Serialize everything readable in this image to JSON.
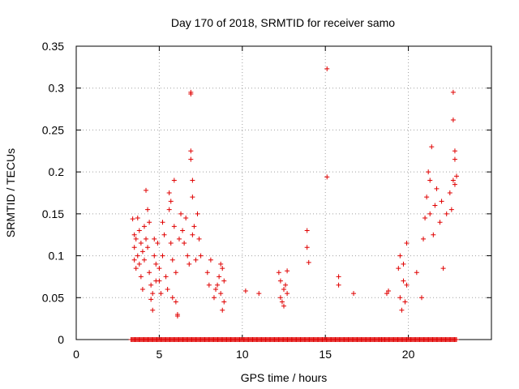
{
  "chart_data": {
    "type": "scatter",
    "title": "Day 170 of 2018, SRMTID for receiver samo",
    "xlabel": "GPS time / hours",
    "ylabel": "SRMTID / TECUs",
    "xlim": [
      0,
      25
    ],
    "ylim": [
      0,
      0.35
    ],
    "xticks": [
      0,
      5,
      10,
      15,
      20
    ],
    "yticks": [
      0,
      0.05,
      0.1,
      0.15,
      0.2,
      0.25,
      0.3,
      0.35
    ],
    "xtick_labels": [
      "0",
      "5",
      "10",
      "15",
      "20"
    ],
    "ytick_labels": [
      "0",
      "0.05",
      "0.1",
      "0.15",
      "0.2",
      "0.25",
      "0.3",
      "0.35"
    ],
    "grid": true,
    "marker": "+",
    "color": "#e00000",
    "series": [
      {
        "name": "SRMTID",
        "points": [
          [
            3.4,
            0.144
          ],
          [
            3.5,
            0.125
          ],
          [
            3.5,
            0.11
          ],
          [
            3.5,
            0.095
          ],
          [
            3.6,
            0.12
          ],
          [
            3.6,
            0.085
          ],
          [
            3.7,
            0.145
          ],
          [
            3.7,
            0.1
          ],
          [
            3.8,
            0.13
          ],
          [
            3.8,
            0.09
          ],
          [
            3.9,
            0.115
          ],
          [
            3.9,
            0.075
          ],
          [
            4.0,
            0.105
          ],
          [
            4.0,
            0.06
          ],
          [
            4.1,
            0.135
          ],
          [
            4.1,
            0.095
          ],
          [
            4.2,
            0.178
          ],
          [
            4.2,
            0.12
          ],
          [
            4.3,
            0.155
          ],
          [
            4.3,
            0.11
          ],
          [
            4.4,
            0.14
          ],
          [
            4.4,
            0.08
          ],
          [
            4.5,
            0.065
          ],
          [
            4.5,
            0.048
          ],
          [
            4.6,
            0.035
          ],
          [
            4.6,
            0.055
          ],
          [
            4.7,
            0.12
          ],
          [
            4.7,
            0.1
          ],
          [
            4.8,
            0.09
          ],
          [
            4.8,
            0.07
          ],
          [
            4.9,
            0.115
          ],
          [
            5.0,
            0.07
          ],
          [
            5.0,
            0.085
          ],
          [
            5.1,
            0.055
          ],
          [
            5.2,
            0.1
          ],
          [
            5.2,
            0.14
          ],
          [
            5.3,
            0.125
          ],
          [
            5.4,
            0.075
          ],
          [
            5.5,
            0.06
          ],
          [
            5.6,
            0.175
          ],
          [
            5.6,
            0.155
          ],
          [
            5.7,
            0.165
          ],
          [
            5.7,
            0.115
          ],
          [
            5.8,
            0.095
          ],
          [
            5.8,
            0.05
          ],
          [
            5.9,
            0.19
          ],
          [
            5.9,
            0.135
          ],
          [
            6.0,
            0.08
          ],
          [
            6.0,
            0.045
          ],
          [
            6.1,
            0.03
          ],
          [
            6.1,
            0.028
          ],
          [
            6.2,
            0.12
          ],
          [
            6.3,
            0.15
          ],
          [
            6.4,
            0.13
          ],
          [
            6.5,
            0.115
          ],
          [
            6.6,
            0.145
          ],
          [
            6.7,
            0.1
          ],
          [
            6.8,
            0.09
          ],
          [
            6.9,
            0.295
          ],
          [
            6.9,
            0.293
          ],
          [
            6.9,
            0.225
          ],
          [
            6.9,
            0.215
          ],
          [
            7.0,
            0.19
          ],
          [
            7.0,
            0.17
          ],
          [
            7.0,
            0.125
          ],
          [
            7.1,
            0.135
          ],
          [
            7.2,
            0.095
          ],
          [
            7.3,
            0.15
          ],
          [
            7.4,
            0.12
          ],
          [
            7.5,
            0.1
          ],
          [
            7.9,
            0.08
          ],
          [
            8.0,
            0.065
          ],
          [
            8.1,
            0.095
          ],
          [
            8.3,
            0.05
          ],
          [
            8.4,
            0.06
          ],
          [
            8.5,
            0.065
          ],
          [
            8.6,
            0.075
          ],
          [
            8.7,
            0.09
          ],
          [
            8.7,
            0.055
          ],
          [
            8.8,
            0.035
          ],
          [
            8.8,
            0.085
          ],
          [
            8.9,
            0.07
          ],
          [
            8.9,
            0.045
          ],
          [
            10.2,
            0.058
          ],
          [
            11.0,
            0.055
          ],
          [
            12.2,
            0.08
          ],
          [
            12.3,
            0.07
          ],
          [
            12.3,
            0.05
          ],
          [
            12.4,
            0.045
          ],
          [
            12.5,
            0.06
          ],
          [
            12.5,
            0.04
          ],
          [
            12.6,
            0.065
          ],
          [
            12.7,
            0.055
          ],
          [
            12.7,
            0.082
          ],
          [
            13.9,
            0.13
          ],
          [
            13.9,
            0.11
          ],
          [
            14.0,
            0.092
          ],
          [
            15.1,
            0.323
          ],
          [
            15.1,
            0.194
          ],
          [
            15.8,
            0.075
          ],
          [
            15.8,
            0.065
          ],
          [
            16.7,
            0.055
          ],
          [
            18.7,
            0.055
          ],
          [
            18.8,
            0.058
          ],
          [
            19.4,
            0.085
          ],
          [
            19.5,
            0.1
          ],
          [
            19.5,
            0.05
          ],
          [
            19.6,
            0.035
          ],
          [
            19.7,
            0.09
          ],
          [
            19.7,
            0.07
          ],
          [
            19.8,
            0.045
          ],
          [
            19.9,
            0.115
          ],
          [
            19.9,
            0.065
          ],
          [
            20.5,
            0.08
          ],
          [
            20.8,
            0.05
          ],
          [
            20.9,
            0.12
          ],
          [
            21.0,
            0.145
          ],
          [
            21.1,
            0.17
          ],
          [
            21.2,
            0.2
          ],
          [
            21.3,
            0.19
          ],
          [
            21.3,
            0.15
          ],
          [
            21.4,
            0.23
          ],
          [
            21.5,
            0.125
          ],
          [
            21.6,
            0.16
          ],
          [
            21.7,
            0.18
          ],
          [
            21.9,
            0.14
          ],
          [
            22.0,
            0.165
          ],
          [
            22.1,
            0.085
          ],
          [
            22.3,
            0.15
          ],
          [
            22.5,
            0.175
          ],
          [
            22.6,
            0.155
          ],
          [
            22.7,
            0.19
          ],
          [
            22.7,
            0.295
          ],
          [
            22.7,
            0.262
          ],
          [
            22.8,
            0.225
          ],
          [
            22.8,
            0.215
          ],
          [
            22.8,
            0.185
          ],
          [
            22.9,
            0.195
          ]
        ],
        "zero_band": [
          [
            3.3,
            9.3
          ],
          [
            9.3,
            18.4
          ],
          [
            18.4,
            22.9
          ]
        ]
      }
    ]
  }
}
